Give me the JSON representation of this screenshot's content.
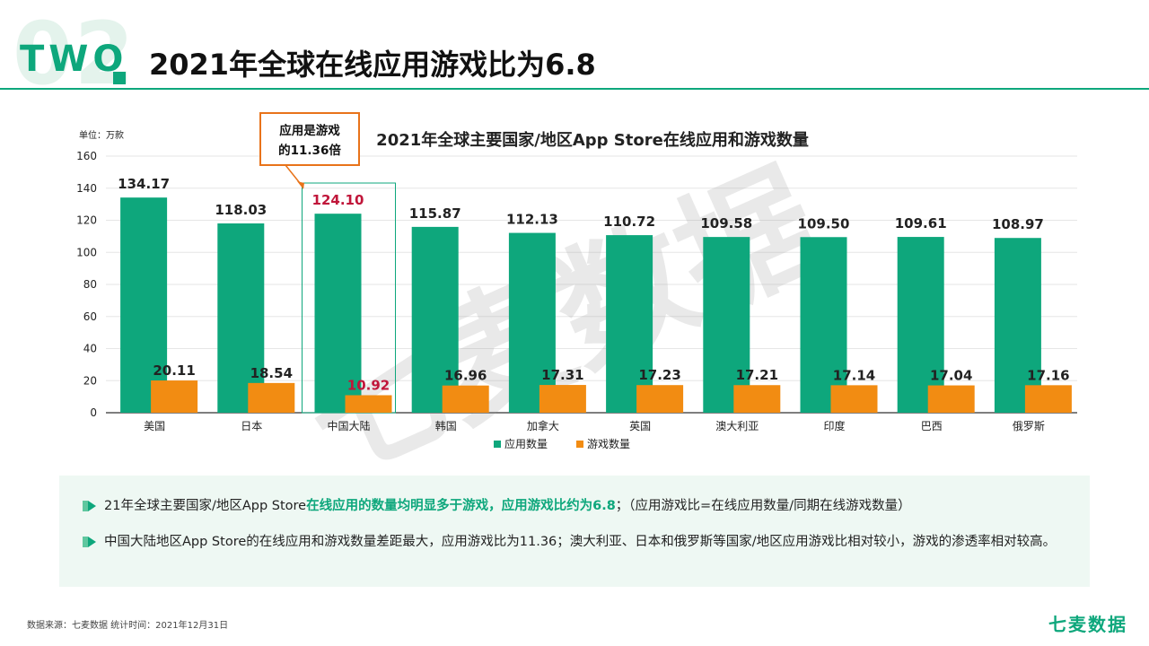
{
  "header": {
    "section_number": "02",
    "section_tag": "TWO",
    "title": "2021年全球在线应用游戏比为6.8"
  },
  "chart_data": {
    "type": "bar",
    "title": "2021年全球主要国家/地区App Store在线应用和游戏数量",
    "unit_label": "单位：万款",
    "categories": [
      "美国",
      "日本",
      "中国大陆",
      "韩国",
      "加拿大",
      "英国",
      "澳大利亚",
      "印度",
      "巴西",
      "俄罗斯"
    ],
    "series": [
      {
        "name": "应用数量",
        "color": "#0ea77c",
        "values": [
          134.17,
          118.03,
          124.1,
          115.87,
          112.13,
          110.72,
          109.58,
          109.5,
          109.61,
          108.97
        ]
      },
      {
        "name": "游戏数量",
        "color": "#f28c12",
        "values": [
          20.11,
          18.54,
          10.92,
          16.96,
          17.31,
          17.23,
          17.21,
          17.14,
          17.04,
          17.16
        ]
      }
    ],
    "labels": {
      "apps": [
        "134.17",
        "118.03",
        "124.10",
        "115.87",
        "112.13",
        "110.72",
        "109.58",
        "109.50",
        "109.61",
        "108.97"
      ],
      "games": [
        "20.11",
        "18.54",
        "10.92",
        "16.96",
        "17.31",
        "17.23",
        "17.21",
        "17.14",
        "17.04",
        "17.16"
      ]
    },
    "ylim": [
      0,
      160
    ],
    "yticks": [
      0,
      20,
      40,
      60,
      80,
      100,
      120,
      140,
      160
    ],
    "highlight_index": 2,
    "highlight_label_color": "#c0163a",
    "callout_line1": "应用是游戏",
    "callout_line2": "的11.36倍",
    "legend_position": "bottom",
    "watermark": "七麦数据"
  },
  "notes": [
    {
      "pre": "21年全球主要国家/地区App Store",
      "highlight": "在线应用的数量均明显多于游戏，应用游戏比约为6.8",
      "post": "；（应用游戏比=在线应用数量/同期在线游戏数量）"
    },
    {
      "text": "中国大陆地区App Store的在线应用和游戏数量差距最大，应用游戏比为11.36；澳大利亚、日本和俄罗斯等国家/地区应用游戏比相对较小，游戏的渗透率相对较高。"
    }
  ],
  "footer": {
    "source": "数据来源：七麦数据 统计时间：2021年12月31日",
    "logo": "七麦数据"
  },
  "colors": {
    "accent": "#0ea77c",
    "orange": "#f28c12",
    "highlight": "#c0163a"
  }
}
